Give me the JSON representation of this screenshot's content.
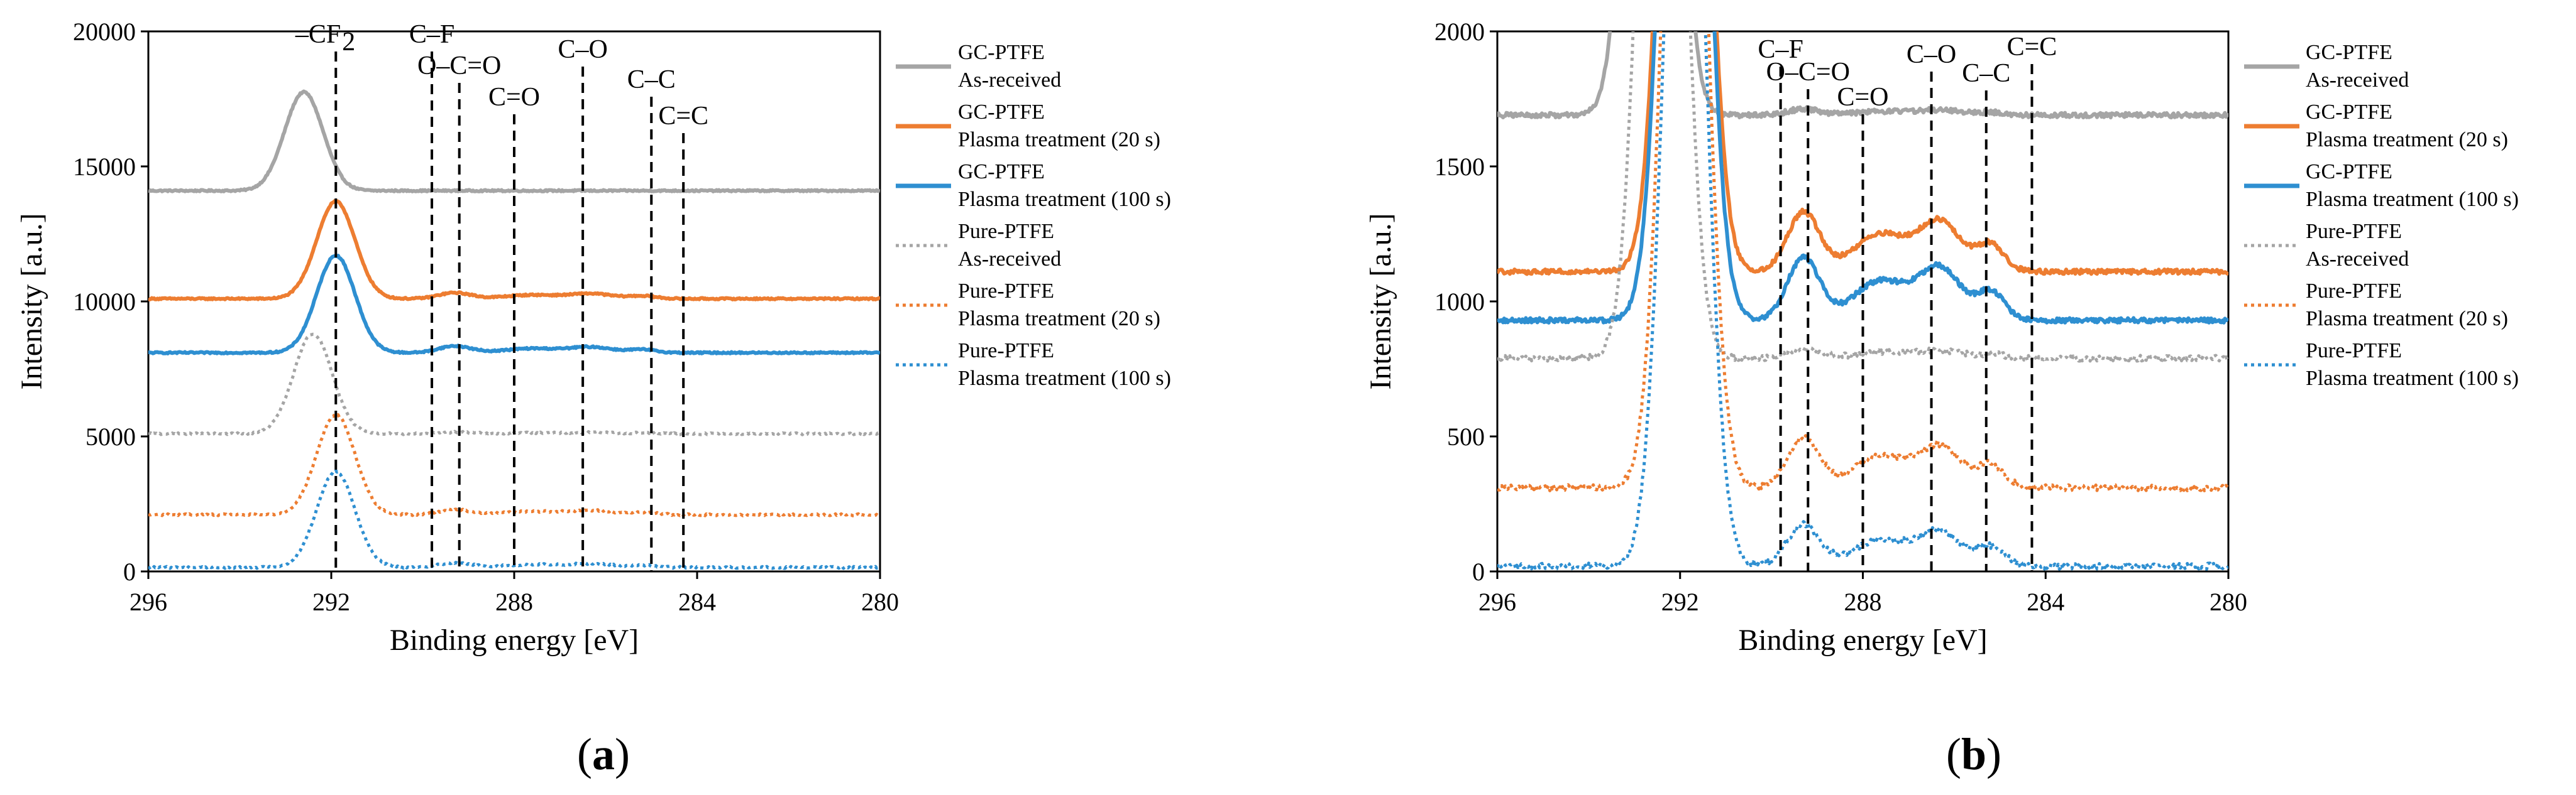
{
  "panels": [
    {
      "id": "a",
      "label": "a",
      "chart_data": {
        "type": "line",
        "xlabel": "Binding energy [eV]",
        "ylabel": "Intensity [a.u.]",
        "xlim": [
          296,
          280
        ],
        "ylim": [
          0,
          20000
        ],
        "xticks": [
          296,
          292,
          288,
          284,
          280
        ],
        "yticks": [
          0,
          5000,
          10000,
          15000,
          20000
        ],
        "peak_markers": [
          {
            "label": "–CF",
            "sub": "2",
            "x": 291.9
          },
          {
            "label": "C–F",
            "x": 289.8
          },
          {
            "label": "O–C=O",
            "x": 289.2
          },
          {
            "label": "C=O",
            "x": 288.0
          },
          {
            "label": "C–O",
            "x": 286.5
          },
          {
            "label": "C–C",
            "x": 285.0
          },
          {
            "label": "C=C",
            "x": 284.3
          }
        ],
        "series": [
          {
            "name": "GC-PTFE As-received",
            "line1": "GC-PTFE",
            "line2": "As-received",
            "color": "#a5a5a5",
            "dash": false,
            "baseline": 14100,
            "peak_x": 292.6,
            "peak_height": 3650,
            "bump": 0
          },
          {
            "name": "GC-PTFE Plasma treatment (20 s)",
            "line1": "GC-PTFE",
            "line2": "Plasma treatment (20 s)",
            "color": "#ed7d31",
            "dash": false,
            "baseline": 10100,
            "peak_x": 291.9,
            "peak_height": 3600,
            "bump": 400
          },
          {
            "name": "GC-PTFE Plasma treatment (100 s)",
            "line1": "GC-PTFE",
            "line2": "Plasma treatment (100 s)",
            "color": "#2e8fd1",
            "dash": false,
            "baseline": 8100,
            "peak_x": 291.9,
            "peak_height": 3600,
            "bump": 450
          },
          {
            "name": "Pure-PTFE As-received",
            "line1": "Pure-PTFE",
            "line2": "As-received",
            "color": "#a5a5a5",
            "dash": true,
            "baseline": 5100,
            "peak_x": 292.4,
            "peak_height": 3700,
            "bump": 100
          },
          {
            "name": "Pure-PTFE Plasma treatment (20 s)",
            "line1": "Pure-PTFE",
            "line2": "Plasma treatment (20 s)",
            "color": "#ed7d31",
            "dash": true,
            "baseline": 2100,
            "peak_x": 291.9,
            "peak_height": 3700,
            "bump": 350
          },
          {
            "name": "Pure-PTFE Plasma treatment (100 s)",
            "line1": "Pure-PTFE",
            "line2": "Plasma treatment (100 s)",
            "color": "#2e8fd1",
            "dash": true,
            "baseline": 150,
            "peak_x": 291.9,
            "peak_height": 3550,
            "bump": 300
          }
        ]
      }
    },
    {
      "id": "b",
      "label": "b",
      "chart_data": {
        "type": "line",
        "xlabel": "Binding energy [eV]",
        "ylabel": "Intensity [a.u.]",
        "xlim": [
          296,
          280
        ],
        "ylim": [
          0,
          2000
        ],
        "xticks": [
          296,
          292,
          288,
          284,
          280
        ],
        "yticks": [
          0,
          500,
          1000,
          1500,
          2000
        ],
        "peak_markers": [
          {
            "label": "C–F",
            "x": 289.8
          },
          {
            "label": "O–C=O",
            "x": 289.2
          },
          {
            "label": "C=O",
            "x": 288.0
          },
          {
            "label": "C–O",
            "x": 286.5
          },
          {
            "label": "C–C",
            "x": 285.3
          },
          {
            "label": "C=C",
            "x": 284.3
          }
        ],
        "series": [
          {
            "name": "GC-PTFE As-received",
            "line1": "GC-PTFE",
            "line2": "As-received",
            "color": "#a5a5a5",
            "dash": false,
            "baseline": 1690,
            "peak_x": 292.6,
            "peak_height": 3650,
            "bump": 40
          },
          {
            "name": "GC-PTFE Plasma treatment (20 s)",
            "line1": "GC-PTFE",
            "line2": "Plasma treatment (20 s)",
            "color": "#ed7d31",
            "dash": false,
            "baseline": 1110,
            "peak_x": 291.9,
            "peak_height": 3600,
            "bump": 400
          },
          {
            "name": "GC-PTFE Plasma treatment (100 s)",
            "line1": "GC-PTFE",
            "line2": "Plasma treatment (100 s)",
            "color": "#2e8fd1",
            "dash": false,
            "baseline": 930,
            "peak_x": 291.9,
            "peak_height": 3600,
            "bump": 420
          },
          {
            "name": "Pure-PTFE As-received",
            "line1": "Pure-PTFE",
            "line2": "As-received",
            "color": "#a5a5a5",
            "dash": true,
            "baseline": 790,
            "peak_x": 292.4,
            "peak_height": 3700,
            "bump": 60
          },
          {
            "name": "Pure-PTFE Plasma treatment (20 s)",
            "line1": "Pure-PTFE",
            "line2": "Plasma treatment (20 s)",
            "color": "#ed7d31",
            "dash": true,
            "baseline": 310,
            "peak_x": 291.9,
            "peak_height": 3700,
            "bump": 330
          },
          {
            "name": "Pure-PTFE Plasma treatment (100 s)",
            "line1": "Pure-PTFE",
            "line2": "Plasma treatment (100 s)",
            "color": "#2e8fd1",
            "dash": true,
            "baseline": 20,
            "peak_x": 291.9,
            "peak_height": 3550,
            "bump": 280
          }
        ]
      }
    }
  ]
}
